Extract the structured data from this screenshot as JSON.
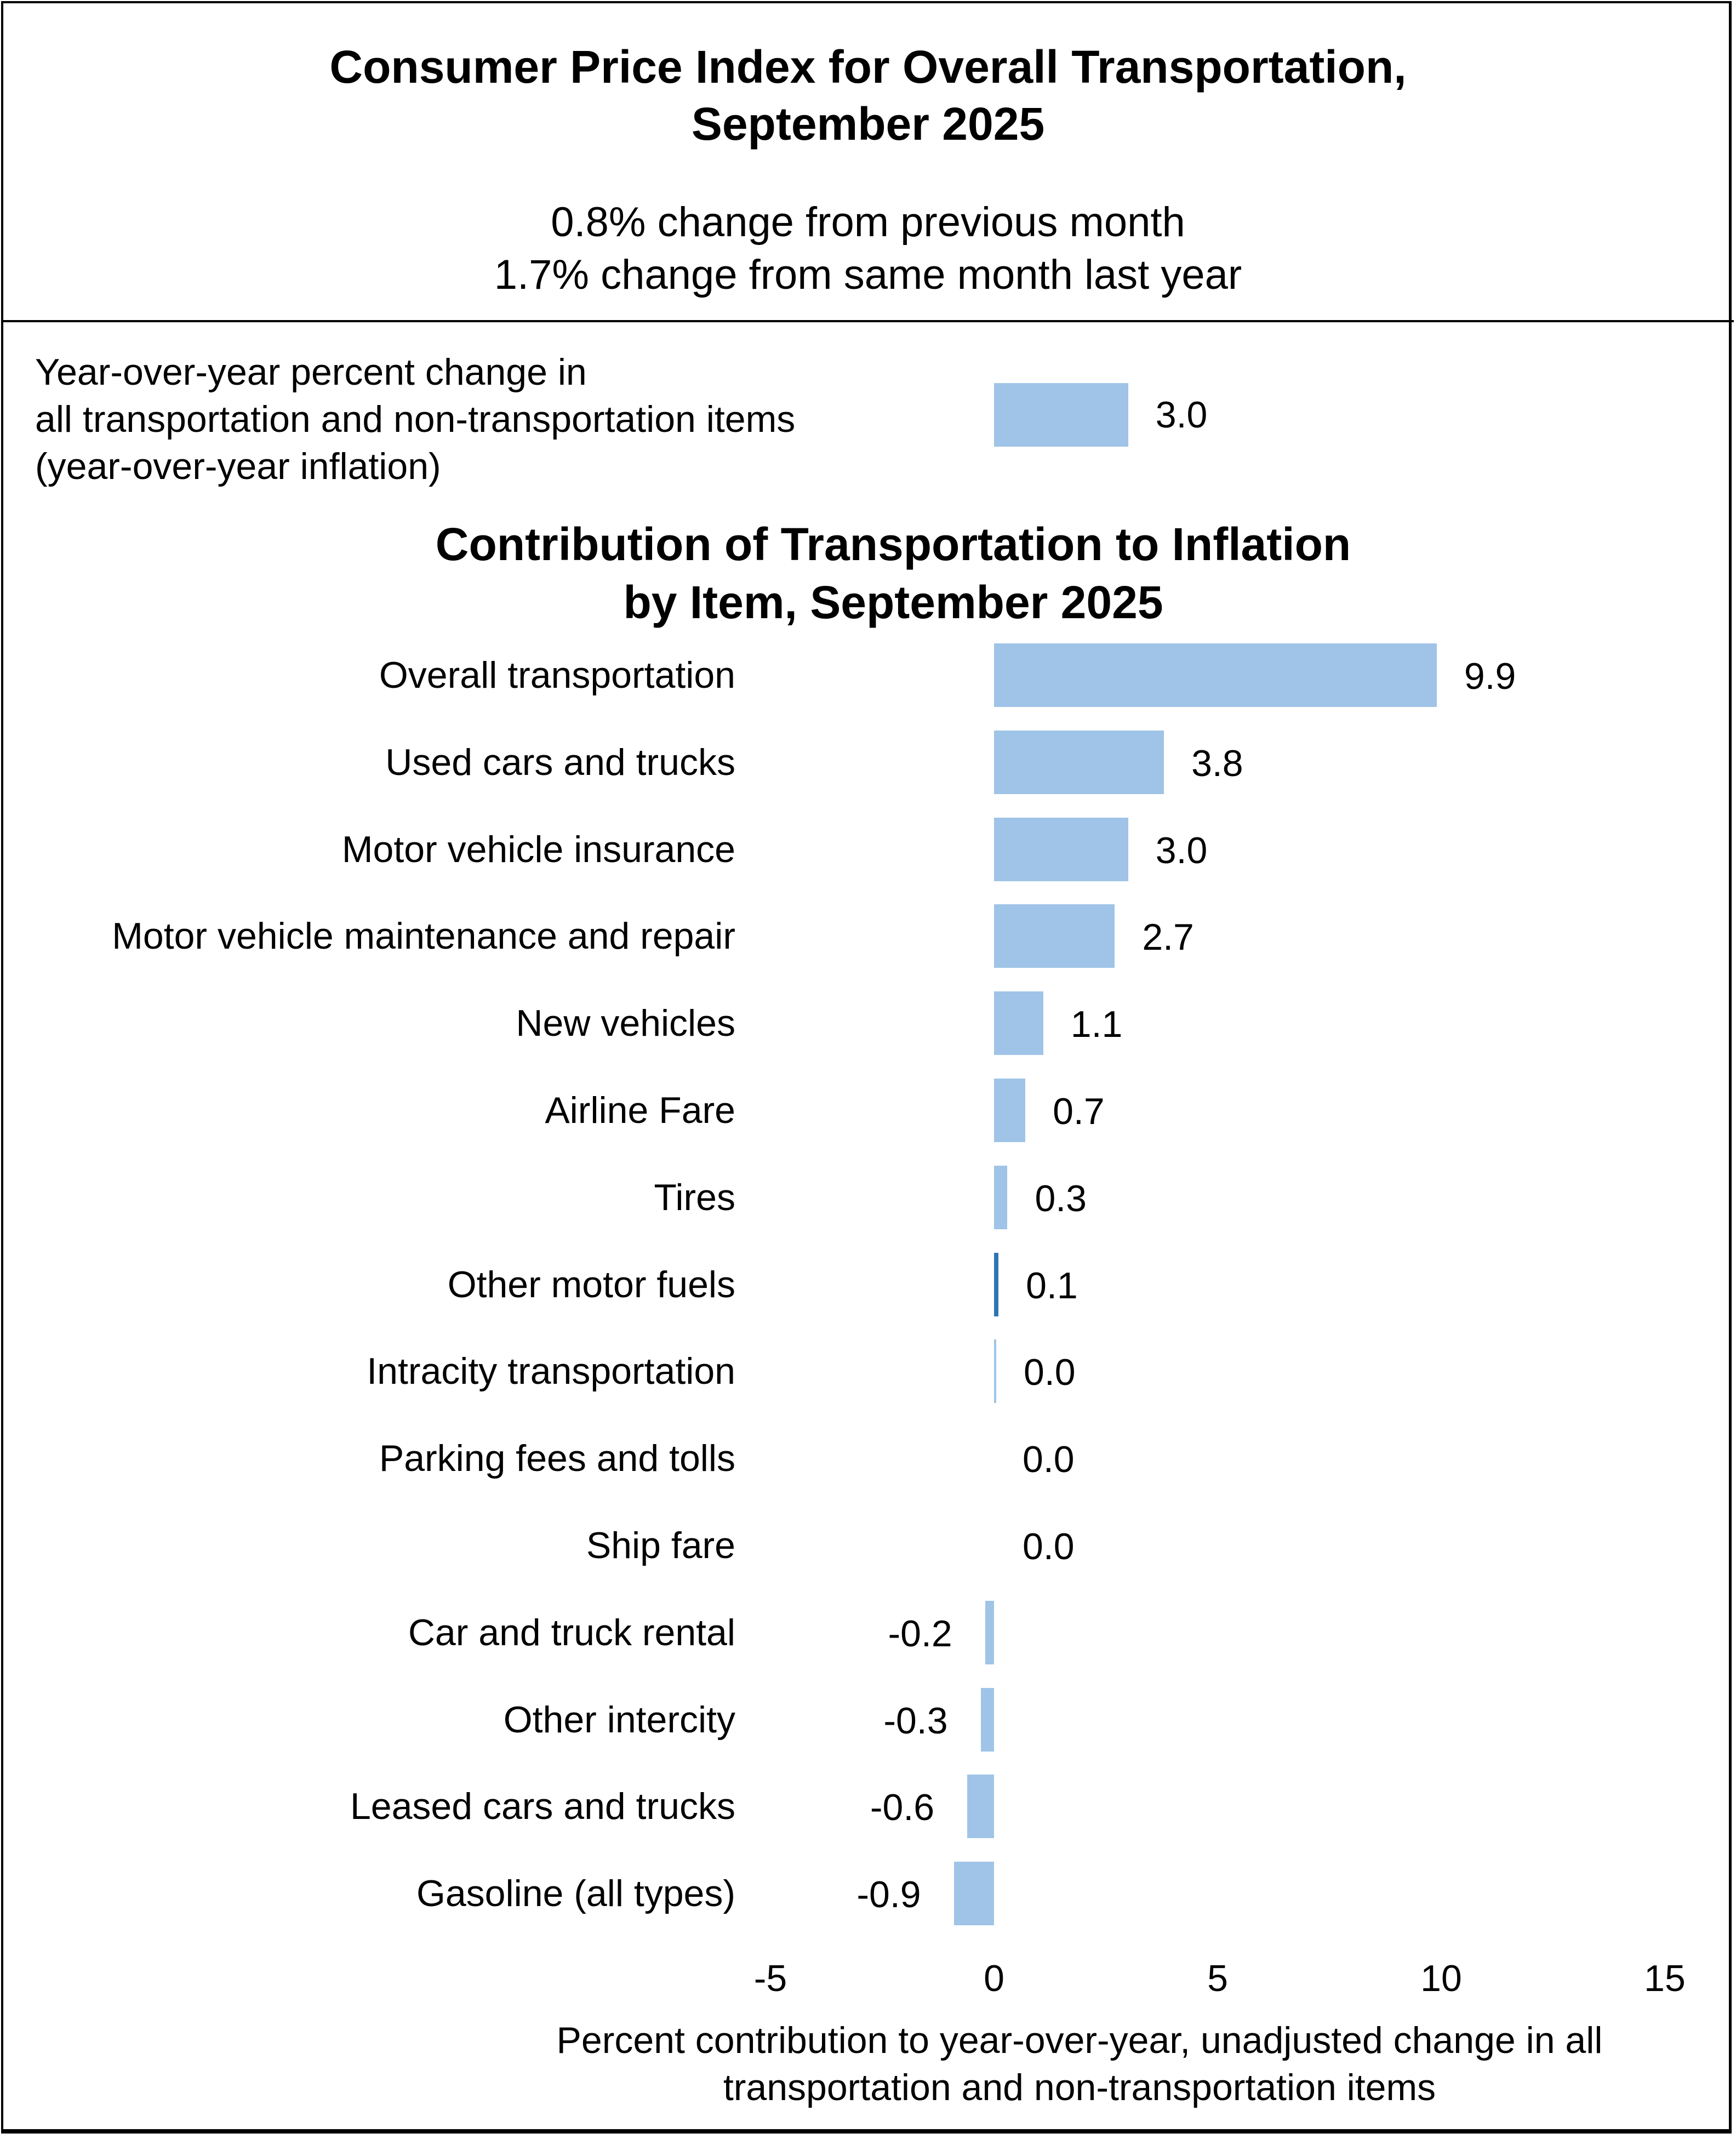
{
  "header": {
    "title_line1": "Consumer Price Index for Overall Transportation,",
    "title_line2": "September 2025",
    "monthly_change": "0.8% change from previous month",
    "yearly_change": "1.7% change from same month last year"
  },
  "yoy_inflation": {
    "label_line1": "Year-over-year percent change in",
    "label_line2": "all transportation and non-transportation items",
    "label_line3": "(year-over-year inflation)",
    "value": 3.0,
    "value_label": "3.0"
  },
  "colors": {
    "bar": "#9fc4e7",
    "bar_highlight": "#2e75b6",
    "text": "#000000",
    "border": "#000000"
  },
  "chart_data": {
    "type": "bar",
    "orientation": "horizontal",
    "title": "Contribution of Transportation to Inflation by Item, September 2025",
    "title_line1": "Contribution of Transportation to Inflation",
    "title_line2": "by Item, September 2025",
    "xlabel_line1": "Percent contribution to year-over-year, unadjusted change in all",
    "xlabel_line2": "transportation and non-transportation items",
    "xlabel": "Percent contribution to year-over-year, unadjusted change in all transportation and non-transportation items",
    "ylabel": "",
    "xlim": [
      -5,
      15
    ],
    "xticks": [
      -5,
      0,
      5,
      10,
      15
    ],
    "xtick_labels": [
      "-5",
      "0",
      "5",
      "10",
      "15"
    ],
    "grid": false,
    "legend": "none",
    "categories": [
      "Overall transportation",
      "Used cars and trucks",
      "Motor vehicle insurance",
      "Motor vehicle maintenance and repair",
      "New vehicles",
      "Airline Fare",
      "Tires",
      "Other motor fuels",
      "Intracity transportation",
      "Parking fees and tolls",
      "Ship fare",
      "Car and truck rental",
      "Other intercity",
      "Leased cars and trucks",
      "Gasoline (all types)"
    ],
    "values": [
      9.9,
      3.8,
      3.0,
      2.7,
      1.1,
      0.7,
      0.3,
      0.1,
      0.0,
      0.0,
      0.0,
      -0.2,
      -0.3,
      -0.6,
      -0.9
    ],
    "value_labels": [
      "9.9",
      "3.8",
      "3.0",
      "2.7",
      "1.1",
      "0.7",
      "0.3",
      "0.1",
      "0.0",
      "0.0",
      "0.0",
      "-0.2",
      "-0.3",
      "-0.6",
      "-0.9"
    ],
    "highlight_categories": [
      "Other motor fuels"
    ]
  }
}
